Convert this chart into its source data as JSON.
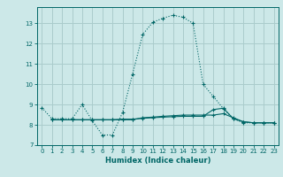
{
  "xlabel": "Humidex (Indice chaleur)",
  "background_color": "#cce8e8",
  "grid_color": "#aacccc",
  "line_color": "#006666",
  "xlim": [
    -0.5,
    23.5
  ],
  "ylim": [
    7,
    13.8
  ],
  "yticks": [
    7,
    8,
    9,
    10,
    11,
    12,
    13
  ],
  "xticks": [
    0,
    1,
    2,
    3,
    4,
    5,
    6,
    7,
    8,
    9,
    10,
    11,
    12,
    13,
    14,
    15,
    16,
    17,
    18,
    19,
    20,
    21,
    22,
    23
  ],
  "line1_x": [
    0,
    1,
    2,
    3,
    4,
    5,
    6,
    7,
    8,
    9,
    10,
    11,
    12,
    13,
    14,
    15,
    16,
    17,
    18,
    19,
    20,
    21,
    22,
    23
  ],
  "line1_y": [
    8.85,
    8.3,
    8.3,
    8.3,
    9.0,
    8.2,
    7.5,
    7.5,
    8.6,
    10.5,
    12.45,
    13.05,
    13.25,
    13.4,
    13.3,
    13.0,
    10.0,
    9.4,
    8.8,
    8.3,
    8.1,
    8.1,
    8.1,
    8.1
  ],
  "line2_x": [
    1,
    2,
    3,
    4,
    5,
    6,
    7,
    8,
    9,
    10,
    11,
    12,
    13,
    14,
    15,
    16,
    17,
    18,
    19,
    20,
    21,
    22,
    23
  ],
  "line2_y": [
    8.25,
    8.25,
    8.25,
    8.25,
    8.25,
    8.25,
    8.25,
    8.25,
    8.25,
    8.35,
    8.38,
    8.42,
    8.45,
    8.48,
    8.48,
    8.48,
    8.48,
    8.55,
    8.35,
    8.15,
    8.1,
    8.1,
    8.1
  ],
  "line3_x": [
    1,
    2,
    3,
    4,
    5,
    6,
    7,
    8,
    9,
    10,
    11,
    12,
    13,
    14,
    15,
    16,
    17,
    18,
    19,
    20,
    21,
    22,
    23
  ],
  "line3_y": [
    8.25,
    8.25,
    8.25,
    8.25,
    8.25,
    8.25,
    8.25,
    8.28,
    8.28,
    8.32,
    8.35,
    8.38,
    8.4,
    8.42,
    8.42,
    8.42,
    8.75,
    8.82,
    8.3,
    8.15,
    8.1,
    8.1,
    8.1
  ]
}
